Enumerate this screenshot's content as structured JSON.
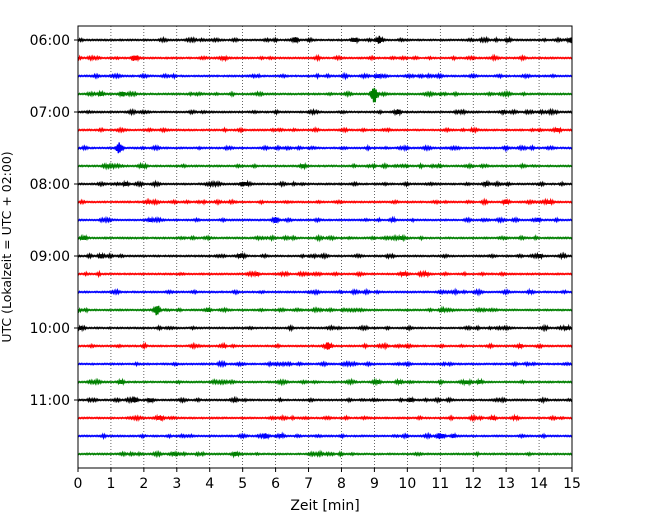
{
  "chart_data": {
    "type": "line",
    "title": "",
    "xlabel": "Zeit  [min]",
    "ylabel": "UTC (Lokalzeit = UTC + 02:00)",
    "xlim": [
      0,
      15
    ],
    "x_ticks": [
      0,
      1,
      2,
      3,
      4,
      5,
      6,
      7,
      8,
      9,
      10,
      11,
      12,
      13,
      14,
      15
    ],
    "x_tick_labels": [
      "0",
      "1",
      "2",
      "3",
      "4",
      "5",
      "6",
      "7",
      "8",
      "9",
      "10",
      "11",
      "12",
      "13",
      "14",
      "15"
    ],
    "grid": "vertical dotted at each minute",
    "y_tick_labels": [
      {
        "label": "06:00",
        "row": 0
      },
      {
        "label": "07:00",
        "row": 4
      },
      {
        "label": "08:00",
        "row": 8
      },
      {
        "label": "09:00",
        "row": 12
      },
      {
        "label": "10:00",
        "row": 16
      },
      {
        "label": "11:00",
        "row": 20
      }
    ],
    "color_cycle": [
      "#000000",
      "#ff0000",
      "#0000ff",
      "#008000"
    ],
    "series": [
      {
        "start": "06:00",
        "events": [
          {
            "t": 6.6,
            "a": 0.45
          },
          {
            "t": 8.4,
            "a": 0.4
          },
          {
            "t": 9.15,
            "a": 0.6
          },
          {
            "t": 15.0,
            "a": 0.3
          }
        ]
      },
      {
        "start": "06:15",
        "events": [
          {
            "t": 1.75,
            "a": 0.45
          },
          {
            "t": 13.5,
            "a": 0.25
          }
        ]
      },
      {
        "start": "06:30",
        "events": [
          {
            "t": 8.1,
            "a": 0.25
          },
          {
            "t": 9.1,
            "a": 0.3
          }
        ]
      },
      {
        "start": "06:45",
        "events": [
          {
            "t": 0.7,
            "a": 0.3
          },
          {
            "t": 9.0,
            "a": 1.4
          }
        ]
      },
      {
        "start": "07:00",
        "events": [
          {
            "t": 9.7,
            "a": 0.4
          }
        ]
      },
      {
        "start": "07:15",
        "events": []
      },
      {
        "start": "07:30",
        "events": [
          {
            "t": 1.25,
            "a": 1.0
          },
          {
            "t": 9.95,
            "a": 0.2
          },
          {
            "t": 13.0,
            "a": 0.25
          }
        ]
      },
      {
        "start": "07:45",
        "events": [
          {
            "t": 1.9,
            "a": 0.25
          }
        ]
      },
      {
        "start": "08:00",
        "events": [
          {
            "t": 1.45,
            "a": 0.3
          },
          {
            "t": 5.0,
            "a": 0.3
          },
          {
            "t": 12.4,
            "a": 0.3
          }
        ]
      },
      {
        "start": "08:15",
        "events": [
          {
            "t": 12.35,
            "a": 0.3
          },
          {
            "t": 13.0,
            "a": 0.4
          }
        ]
      },
      {
        "start": "08:30",
        "events": [
          {
            "t": 6.0,
            "a": 0.45
          }
        ]
      },
      {
        "start": "08:45",
        "events": [
          {
            "t": 0.2,
            "a": 0.2
          }
        ]
      },
      {
        "start": "09:00",
        "events": [
          {
            "t": 0.7,
            "a": 0.4
          }
        ]
      },
      {
        "start": "09:15",
        "events": []
      },
      {
        "start": "09:30",
        "events": []
      },
      {
        "start": "09:45",
        "events": [
          {
            "t": 2.4,
            "a": 0.85
          },
          {
            "t": 3.95,
            "a": 0.3
          }
        ]
      },
      {
        "start": "10:00",
        "events": [
          {
            "t": 14.85,
            "a": 0.3
          }
        ]
      },
      {
        "start": "10:15",
        "events": [
          {
            "t": 7.6,
            "a": 0.55
          }
        ]
      },
      {
        "start": "10:30",
        "events": []
      },
      {
        "start": "10:45",
        "events": [
          {
            "t": 1.3,
            "a": 0.3
          },
          {
            "t": 12.2,
            "a": 0.35
          }
        ]
      },
      {
        "start": "11:00",
        "events": [
          {
            "t": 1.7,
            "a": 0.45
          },
          {
            "t": 2.2,
            "a": 0.3
          },
          {
            "t": 10.1,
            "a": 0.3
          }
        ]
      },
      {
        "start": "11:15",
        "events": [
          {
            "t": 12.6,
            "a": 0.3
          }
        ]
      },
      {
        "start": "11:30",
        "events": [
          {
            "t": 5.7,
            "a": 0.4
          },
          {
            "t": 10.6,
            "a": 0.25
          }
        ]
      },
      {
        "start": "11:45",
        "events": []
      }
    ]
  }
}
